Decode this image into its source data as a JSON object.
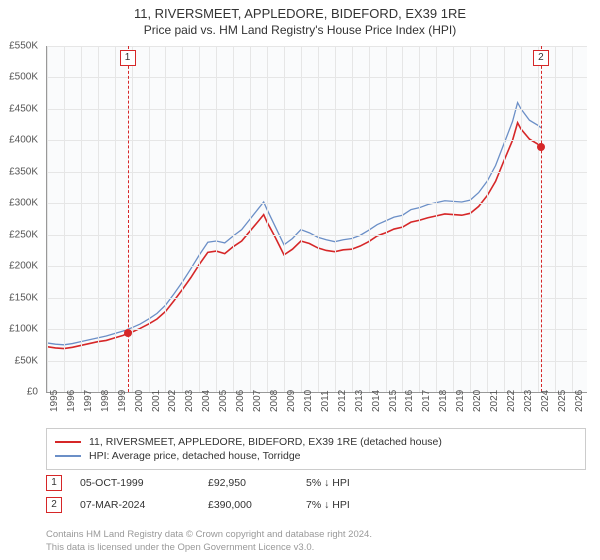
{
  "title_line1": "11, RIVERSMEET, APPLEDORE, BIDEFORD, EX39 1RE",
  "title_line2": "Price paid vs. HM Land Registry's House Price Index (HPI)",
  "chart": {
    "type": "line",
    "background_color": "#fafbfc",
    "grid_color": "#e6e6e6",
    "xlim": [
      1995,
      2026.9
    ],
    "ylim": [
      0,
      550
    ],
    "ytick_step": 50,
    "ytick_labels": [
      "£0",
      "£50K",
      "£100K",
      "£150K",
      "£200K",
      "£250K",
      "£300K",
      "£350K",
      "£400K",
      "£450K",
      "£500K",
      "£550K"
    ],
    "xtick_step": 1,
    "xtick_labels": [
      "1995",
      "1996",
      "1997",
      "1998",
      "1999",
      "2000",
      "2001",
      "2002",
      "2003",
      "2004",
      "2005",
      "2006",
      "2007",
      "2008",
      "2009",
      "2010",
      "2011",
      "2012",
      "2013",
      "2014",
      "2015",
      "2016",
      "2017",
      "2018",
      "2019",
      "2020",
      "2021",
      "2022",
      "2023",
      "2024",
      "2025",
      "2026"
    ],
    "series": [
      {
        "name": "property",
        "color": "#d62728",
        "width": 1.6,
        "label": "11, RIVERSMEET, APPLEDORE, BIDEFORD, EX39 1RE (detached house)",
        "points": [
          [
            1995.0,
            72
          ],
          [
            1995.5,
            70
          ],
          [
            1996.0,
            69
          ],
          [
            1996.5,
            71
          ],
          [
            1997.0,
            74
          ],
          [
            1997.5,
            77
          ],
          [
            1998.0,
            80
          ],
          [
            1998.5,
            82
          ],
          [
            1999.0,
            86
          ],
          [
            1999.5,
            90
          ],
          [
            1999.76,
            93
          ],
          [
            2000.0,
            95
          ],
          [
            2000.5,
            101
          ],
          [
            2001.0,
            108
          ],
          [
            2001.5,
            116
          ],
          [
            2002.0,
            128
          ],
          [
            2002.5,
            145
          ],
          [
            2003.0,
            163
          ],
          [
            2003.5,
            182
          ],
          [
            2004.0,
            203
          ],
          [
            2004.5,
            222
          ],
          [
            2005.0,
            224
          ],
          [
            2005.5,
            220
          ],
          [
            2006.0,
            231
          ],
          [
            2006.5,
            240
          ],
          [
            2007.0,
            256
          ],
          [
            2007.5,
            272
          ],
          [
            2007.8,
            282
          ],
          [
            2008.0,
            270
          ],
          [
            2008.5,
            245
          ],
          [
            2009.0,
            218
          ],
          [
            2009.5,
            227
          ],
          [
            2010.0,
            240
          ],
          [
            2010.5,
            236
          ],
          [
            2011.0,
            229
          ],
          [
            2011.5,
            225
          ],
          [
            2012.0,
            223
          ],
          [
            2012.5,
            226
          ],
          [
            2013.0,
            227
          ],
          [
            2013.5,
            232
          ],
          [
            2014.0,
            239
          ],
          [
            2014.5,
            248
          ],
          [
            2015.0,
            253
          ],
          [
            2015.5,
            259
          ],
          [
            2016.0,
            262
          ],
          [
            2016.5,
            270
          ],
          [
            2017.0,
            273
          ],
          [
            2017.5,
            277
          ],
          [
            2018.0,
            280
          ],
          [
            2018.5,
            283
          ],
          [
            2019.0,
            282
          ],
          [
            2019.5,
            281
          ],
          [
            2020.0,
            284
          ],
          [
            2020.5,
            295
          ],
          [
            2021.0,
            312
          ],
          [
            2021.5,
            335
          ],
          [
            2022.0,
            368
          ],
          [
            2022.5,
            400
          ],
          [
            2022.8,
            428
          ],
          [
            2023.0,
            418
          ],
          [
            2023.5,
            402
          ],
          [
            2024.0,
            394
          ],
          [
            2024.18,
            390
          ]
        ]
      },
      {
        "name": "hpi",
        "color": "#6b8fc7",
        "width": 1.3,
        "label": "HPI: Average price, detached house, Torridge",
        "points": [
          [
            1995.0,
            78
          ],
          [
            1995.5,
            76
          ],
          [
            1996.0,
            75
          ],
          [
            1996.5,
            77
          ],
          [
            1997.0,
            80
          ],
          [
            1997.5,
            83
          ],
          [
            1998.0,
            86
          ],
          [
            1998.5,
            89
          ],
          [
            1999.0,
            93
          ],
          [
            1999.5,
            97
          ],
          [
            2000.0,
            102
          ],
          [
            2000.5,
            108
          ],
          [
            2001.0,
            116
          ],
          [
            2001.5,
            125
          ],
          [
            2002.0,
            138
          ],
          [
            2002.5,
            156
          ],
          [
            2003.0,
            175
          ],
          [
            2003.5,
            196
          ],
          [
            2004.0,
            218
          ],
          [
            2004.5,
            238
          ],
          [
            2005.0,
            240
          ],
          [
            2005.5,
            237
          ],
          [
            2006.0,
            248
          ],
          [
            2006.5,
            258
          ],
          [
            2007.0,
            275
          ],
          [
            2007.5,
            292
          ],
          [
            2007.8,
            302
          ],
          [
            2008.0,
            290
          ],
          [
            2008.5,
            262
          ],
          [
            2009.0,
            234
          ],
          [
            2009.5,
            244
          ],
          [
            2010.0,
            258
          ],
          [
            2010.5,
            253
          ],
          [
            2011.0,
            246
          ],
          [
            2011.5,
            242
          ],
          [
            2012.0,
            239
          ],
          [
            2012.5,
            242
          ],
          [
            2013.0,
            244
          ],
          [
            2013.5,
            249
          ],
          [
            2014.0,
            257
          ],
          [
            2014.5,
            266
          ],
          [
            2015.0,
            272
          ],
          [
            2015.5,
            278
          ],
          [
            2016.0,
            281
          ],
          [
            2016.5,
            290
          ],
          [
            2017.0,
            293
          ],
          [
            2017.5,
            298
          ],
          [
            2018.0,
            301
          ],
          [
            2018.5,
            304
          ],
          [
            2019.0,
            303
          ],
          [
            2019.5,
            302
          ],
          [
            2020.0,
            305
          ],
          [
            2020.5,
            317
          ],
          [
            2021.0,
            335
          ],
          [
            2021.5,
            360
          ],
          [
            2022.0,
            395
          ],
          [
            2022.5,
            430
          ],
          [
            2022.8,
            460
          ],
          [
            2023.0,
            450
          ],
          [
            2023.5,
            432
          ],
          [
            2024.0,
            424
          ],
          [
            2024.18,
            420
          ]
        ]
      }
    ],
    "markers": [
      {
        "n": "1",
        "x": 1999.76,
        "y": 93,
        "color": "#d62728",
        "box_top": true
      },
      {
        "n": "2",
        "x": 2024.18,
        "y": 390,
        "color": "#d62728",
        "box_top": true
      }
    ]
  },
  "legend": {
    "items": [
      {
        "color": "#d62728",
        "label": "11, RIVERSMEET, APPLEDORE, BIDEFORD, EX39 1RE (detached house)"
      },
      {
        "color": "#6b8fc7",
        "label": "HPI: Average price, detached house, Torridge"
      }
    ]
  },
  "events": [
    {
      "n": "1",
      "color": "#d62728",
      "date": "05-OCT-1999",
      "price": "£92,950",
      "pct": "5% ↓ HPI"
    },
    {
      "n": "2",
      "color": "#d62728",
      "date": "07-MAR-2024",
      "price": "£390,000",
      "pct": "7% ↓ HPI"
    }
  ],
  "footer_line1": "Contains HM Land Registry data © Crown copyright and database right 2024.",
  "footer_line2": "This data is licensed under the Open Government Licence v3.0."
}
